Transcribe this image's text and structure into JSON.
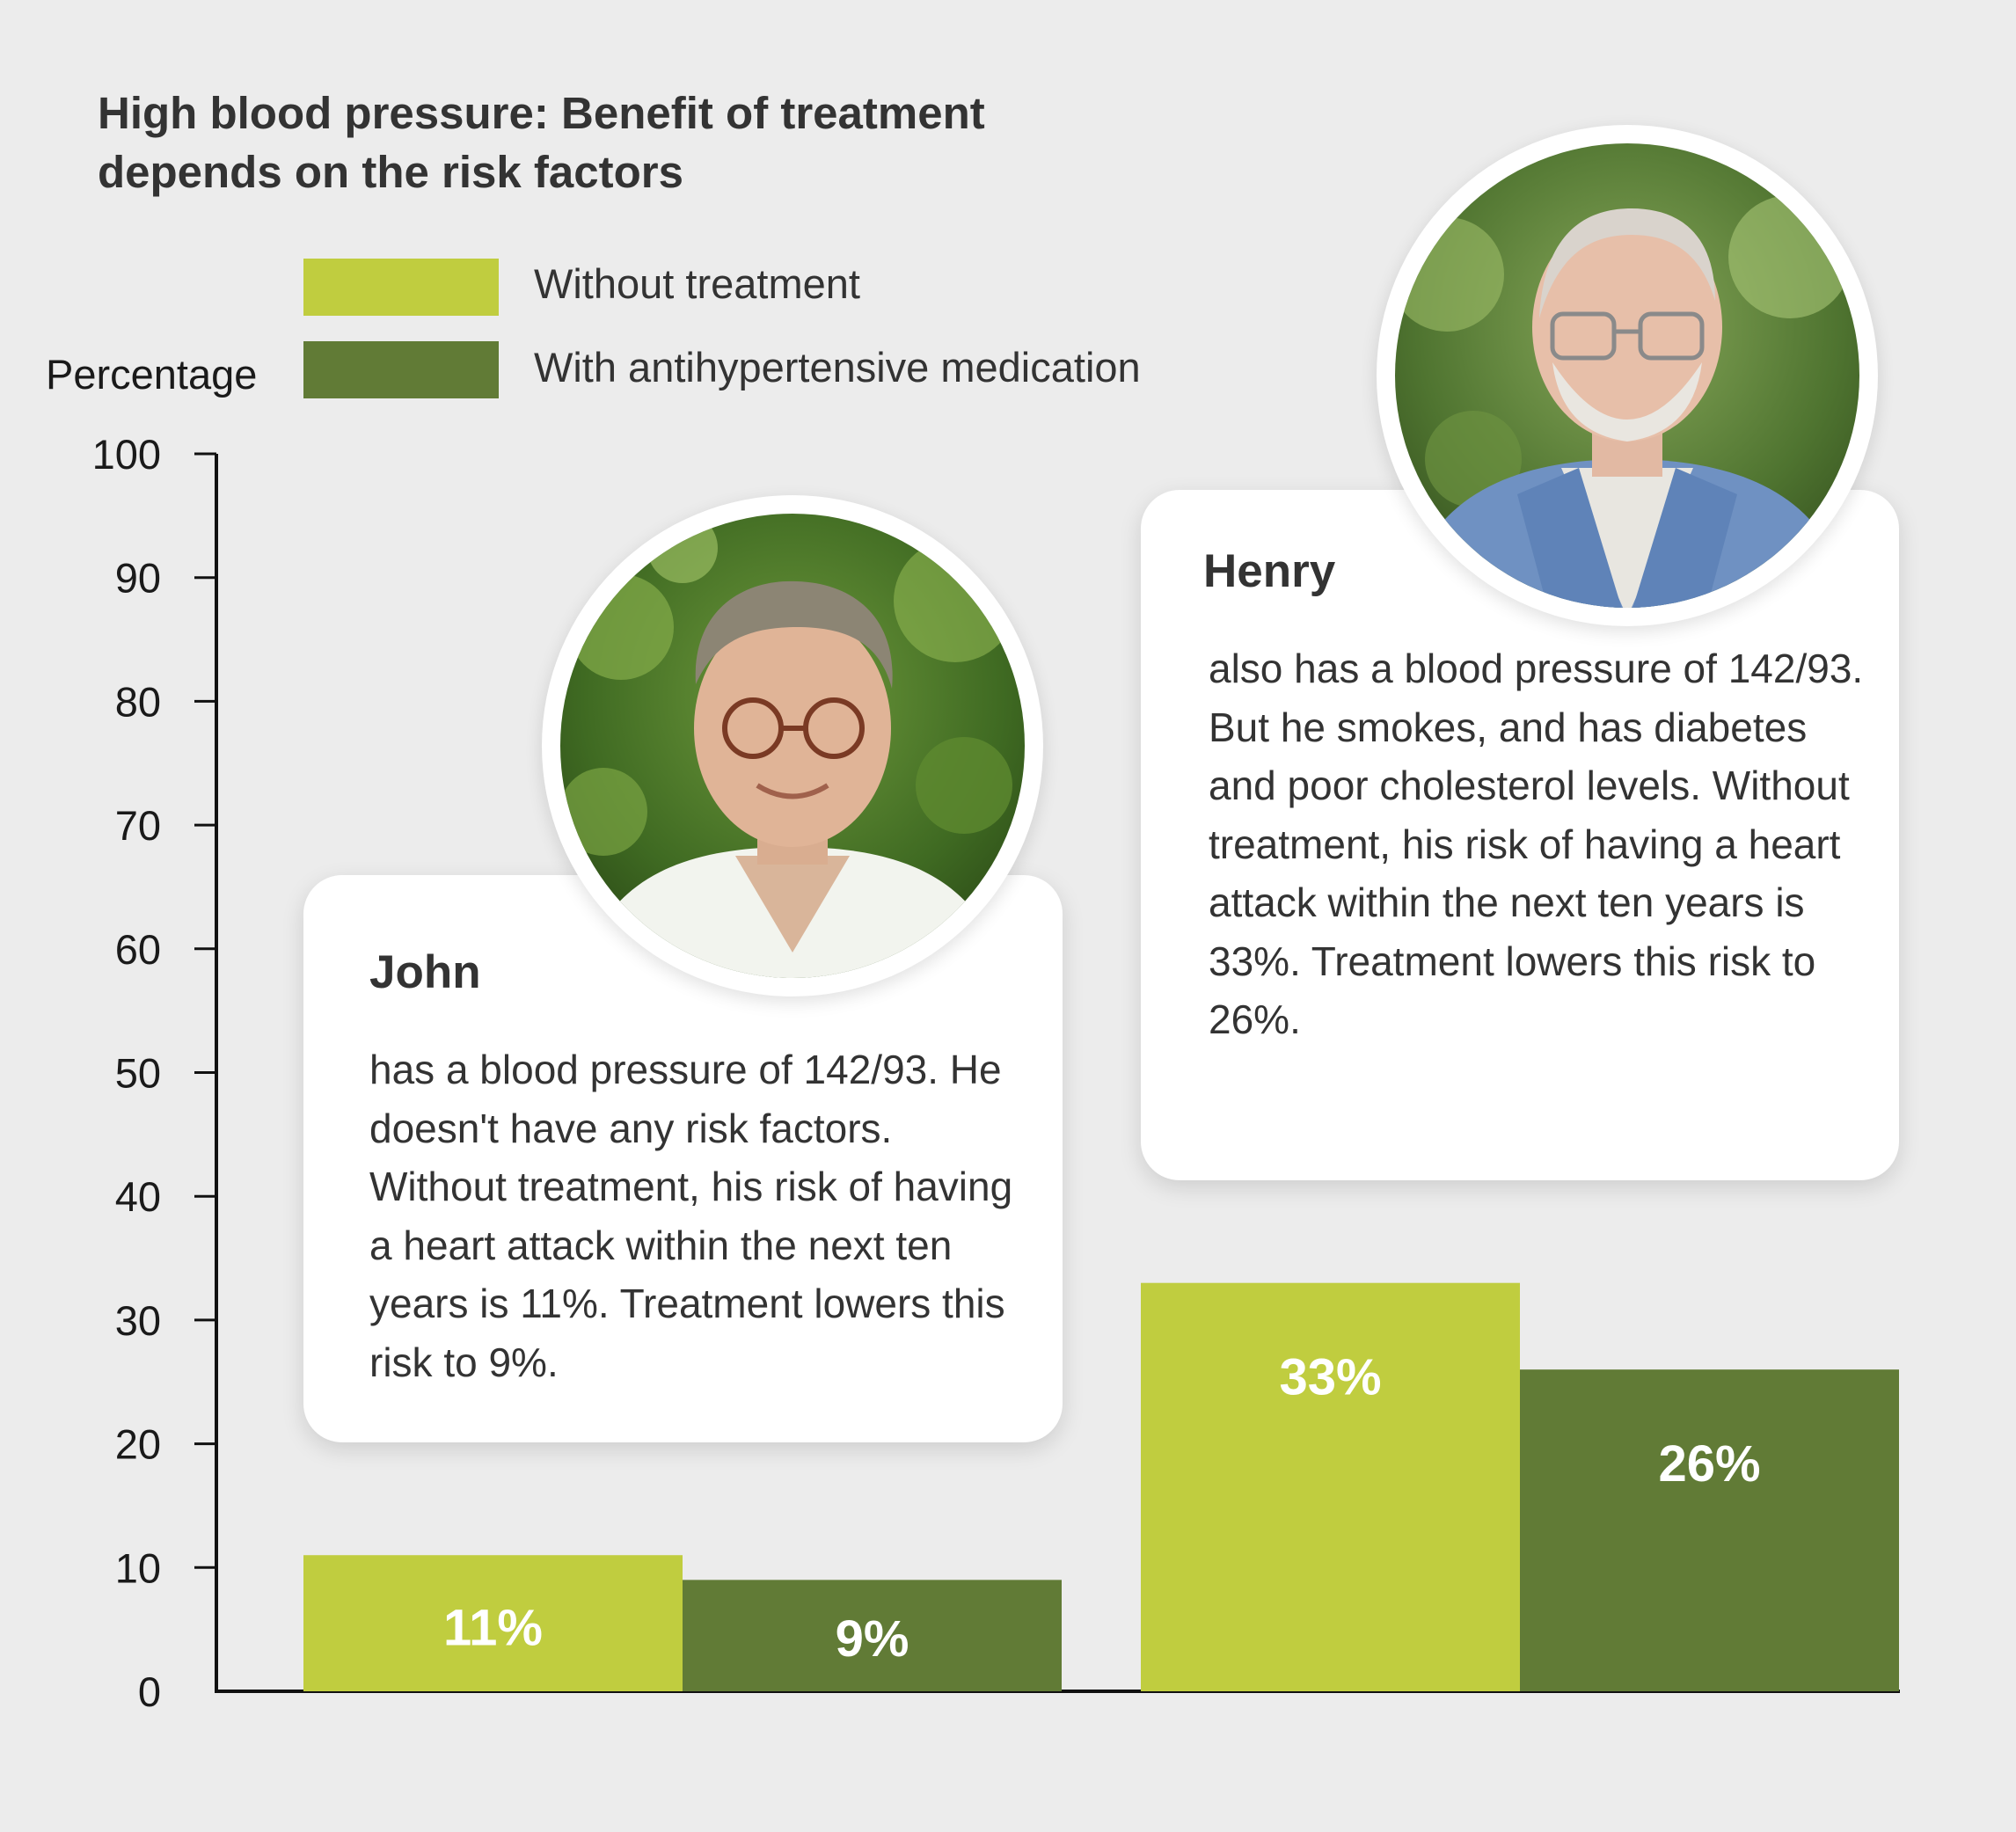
{
  "title": "High blood pressure: Benefit of treatment depends on the risk factors",
  "legend": [
    {
      "label": "Without treatment",
      "color": "#c0cd3f"
    },
    {
      "label": "With antihypertensive medication",
      "color": "#617b36"
    }
  ],
  "chart_data": {
    "type": "bar",
    "ylabel": "Percentage",
    "ylim": [
      0,
      100
    ],
    "yticks": [
      "0",
      "10",
      "20",
      "30",
      "40",
      "50",
      "60",
      "70",
      "80",
      "90",
      "100"
    ],
    "categories": [
      "John",
      "Henry"
    ],
    "series": [
      {
        "name": "Without treatment",
        "color": "#c0cd3f",
        "values": [
          11,
          33
        ],
        "labels": [
          "11%",
          "33%"
        ]
      },
      {
        "name": "With antihypertensive medication",
        "color": "#617b36",
        "values": [
          9,
          26
        ],
        "labels": [
          "9%",
          "26%"
        ]
      }
    ],
    "grid": false,
    "legend_position": "top"
  },
  "cards": {
    "john": {
      "name": "John",
      "text": "has a blood pressure of 142/93. He doesn't have any risk factors. Without treatment, his risk of having a heart attack within the next ten years is 11%. Treatment lowers this risk to 9%.",
      "photo_icon": "john-portrait-photo"
    },
    "henry": {
      "name": "Henry",
      "text": "also has a blood pressure of 142/93. But he smokes, and has diabetes and poor cholesterol levels. Without treatment, his risk of having a heart attack within the next ten years is 33%. Treatment lowers this risk to 26%.",
      "photo_icon": "henry-portrait-photo"
    }
  }
}
